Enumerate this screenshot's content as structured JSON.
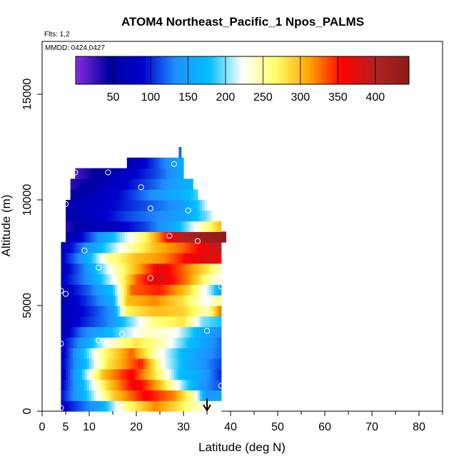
{
  "chart_data": {
    "type": "heatmap",
    "title": "ATOM4 Northeast_Pacific_1 Npos_PALMS",
    "subtitle_flights": "Flts: 1,2",
    "subtitle_dates": "MMDD: 0424,0427",
    "xlabel": "Latitude (deg N)",
    "ylabel": "Altitude (m)",
    "xlim": [
      0,
      85
    ],
    "ylim": [
      0,
      17500
    ],
    "x_major_ticks": [
      0,
      10,
      20,
      30,
      40,
      50,
      60,
      70,
      80
    ],
    "x_major_labels": [
      "0",
      "10",
      "20",
      "30",
      "40",
      "50",
      "60",
      "70",
      "80"
    ],
    "x_extra_tick_labels": [
      {
        "value": 5,
        "label": "5"
      }
    ],
    "x_minor_ticks": [
      5,
      15,
      25,
      35,
      45,
      55,
      65,
      75,
      85
    ],
    "y_ticks": [
      0,
      5000,
      10000,
      15000
    ],
    "y_tick_labels": [
      "0",
      "5000",
      "10000",
      "15000"
    ],
    "colorbar": {
      "min": 0,
      "max": 445,
      "ticks": [
        50,
        100,
        150,
        200,
        250,
        300,
        350,
        400
      ],
      "tick_labels": [
        "50",
        "100",
        "150",
        "200",
        "250",
        "300",
        "350",
        "400"
      ],
      "colors": [
        "#8a2be2",
        "#0000a0",
        "#0000cd",
        "#1e90ff",
        "#00bfff",
        "#ffffff",
        "#ffff66",
        "#ffa500",
        "#ff0000",
        "#b22222",
        "#8b1a1a"
      ]
    },
    "rows": [
      {
        "alt": [
          0,
          500
        ],
        "xmin": 4,
        "xmax": 38,
        "knots": [
          [
            4,
            80
          ],
          [
            12,
            150
          ],
          [
            18,
            260
          ],
          [
            24,
            320
          ],
          [
            28,
            290
          ],
          [
            33,
            240
          ],
          [
            38,
            220
          ]
        ]
      },
      {
        "alt": [
          500,
          1000
        ],
        "xmin": 4,
        "xmax": 38,
        "knots": [
          [
            4,
            90
          ],
          [
            10,
            190
          ],
          [
            15,
            290
          ],
          [
            22,
            360
          ],
          [
            28,
            320
          ],
          [
            32,
            250
          ],
          [
            35,
            140
          ],
          [
            38,
            150
          ]
        ]
      },
      {
        "alt": [
          1000,
          1500
        ],
        "xmin": 4,
        "xmax": 38,
        "knots": [
          [
            4,
            80
          ],
          [
            9,
            180
          ],
          [
            14,
            290
          ],
          [
            20,
            370
          ],
          [
            25,
            300
          ],
          [
            30,
            200
          ],
          [
            34,
            140
          ],
          [
            38,
            110
          ]
        ]
      },
      {
        "alt": [
          1500,
          2000
        ],
        "xmin": 4,
        "xmax": 38,
        "knots": [
          [
            4,
            70
          ],
          [
            8,
            170
          ],
          [
            13,
            300
          ],
          [
            19,
            360
          ],
          [
            24,
            280
          ],
          [
            29,
            180
          ],
          [
            34,
            150
          ],
          [
            38,
            100
          ]
        ]
      },
      {
        "alt": [
          2000,
          2500
        ],
        "xmin": 4,
        "xmax": 38,
        "knots": [
          [
            4,
            80
          ],
          [
            9,
            170
          ],
          [
            14,
            280
          ],
          [
            21,
            350
          ],
          [
            26,
            220
          ],
          [
            31,
            160
          ],
          [
            38,
            110
          ]
        ]
      },
      {
        "alt": [
          2500,
          3000
        ],
        "xmin": 4,
        "xmax": 38,
        "knots": [
          [
            4,
            70
          ],
          [
            8,
            160
          ],
          [
            13,
            260
          ],
          [
            19,
            330
          ],
          [
            25,
            230
          ],
          [
            30,
            170
          ],
          [
            38,
            120
          ]
        ]
      },
      {
        "alt": [
          3000,
          3500
        ],
        "xmin": 4,
        "xmax": 38,
        "knots": [
          [
            4,
            80
          ],
          [
            9,
            150
          ],
          [
            14,
            230
          ],
          [
            20,
            280
          ],
          [
            26,
            240
          ],
          [
            31,
            180
          ],
          [
            38,
            120
          ]
        ]
      },
      {
        "alt": [
          3500,
          4000
        ],
        "xmin": 4,
        "xmax": 38,
        "knots": [
          [
            4,
            60
          ],
          [
            8,
            120
          ],
          [
            13,
            160
          ],
          [
            17,
            200
          ],
          [
            22,
            240
          ],
          [
            28,
            230
          ],
          [
            33,
            170
          ],
          [
            38,
            130
          ]
        ]
      },
      {
        "alt": [
          4000,
          4500
        ],
        "xmin": 4,
        "xmax": 38,
        "knots": [
          [
            4,
            60
          ],
          [
            9,
            100
          ],
          [
            14,
            130
          ],
          [
            18,
            190
          ],
          [
            24,
            260
          ],
          [
            30,
            280
          ],
          [
            34,
            200
          ],
          [
            38,
            180
          ]
        ]
      },
      {
        "alt": [
          4500,
          5000
        ],
        "xmin": 4,
        "xmax": 38,
        "knots": [
          [
            4,
            60
          ],
          [
            10,
            100
          ],
          [
            15,
            140
          ],
          [
            18,
            270
          ],
          [
            24,
            300
          ],
          [
            30,
            290
          ],
          [
            35,
            240
          ],
          [
            38,
            330
          ]
        ]
      },
      {
        "alt": [
          5000,
          5500
        ],
        "xmin": 4,
        "xmax": 38,
        "knots": [
          [
            4,
            60
          ],
          [
            10,
            110
          ],
          [
            15,
            160
          ],
          [
            18,
            300
          ],
          [
            24,
            320
          ],
          [
            30,
            280
          ],
          [
            35,
            220
          ],
          [
            38,
            260
          ]
        ]
      },
      {
        "alt": [
          5500,
          6000
        ],
        "xmin": 4,
        "xmax": 38,
        "knots": [
          [
            4,
            70
          ],
          [
            10,
            120
          ],
          [
            15,
            180
          ],
          [
            19,
            330
          ],
          [
            25,
            350
          ],
          [
            31,
            290
          ],
          [
            36,
            200
          ],
          [
            38,
            150
          ]
        ]
      },
      {
        "alt": [
          6000,
          6500
        ],
        "xmin": 4,
        "xmax": 38,
        "knots": [
          [
            4,
            80
          ],
          [
            10,
            140
          ],
          [
            15,
            220
          ],
          [
            20,
            330
          ],
          [
            25,
            380
          ],
          [
            31,
            320
          ],
          [
            36,
            240
          ],
          [
            38,
            230
          ]
        ]
      },
      {
        "alt": [
          6500,
          7000
        ],
        "xmin": 4,
        "xmax": 38,
        "knots": [
          [
            4,
            70
          ],
          [
            9,
            130
          ],
          [
            14,
            220
          ],
          [
            19,
            290
          ],
          [
            25,
            370
          ],
          [
            30,
            330
          ],
          [
            35,
            280
          ],
          [
            38,
            240
          ]
        ]
      },
      {
        "alt": [
          7000,
          7500
        ],
        "xmin": 4,
        "xmax": 38,
        "knots": [
          [
            4,
            80
          ],
          [
            9,
            150
          ],
          [
            14,
            250
          ],
          [
            20,
            300
          ],
          [
            26,
            320
          ],
          [
            31,
            360
          ],
          [
            36,
            380
          ],
          [
            38,
            350
          ]
        ]
      },
      {
        "alt": [
          7500,
          8000
        ],
        "xmin": 4,
        "xmax": 38,
        "knots": [
          [
            4,
            60
          ],
          [
            8,
            120
          ],
          [
            13,
            180
          ],
          [
            18,
            240
          ],
          [
            24,
            300
          ],
          [
            30,
            330
          ],
          [
            35,
            370
          ],
          [
            38,
            400
          ]
        ]
      },
      {
        "alt": [
          8000,
          8500
        ],
        "xmin": 5,
        "xmax": 39,
        "knots": [
          [
            5,
            50
          ],
          [
            10,
            110
          ],
          [
            16,
            190
          ],
          [
            22,
            270
          ],
          [
            28,
            380
          ],
          [
            33,
            420
          ],
          [
            39,
            440
          ]
        ]
      },
      {
        "alt": [
          8500,
          9000
        ],
        "xmin": 5,
        "xmax": 38,
        "knots": [
          [
            5,
            30
          ],
          [
            10,
            60
          ],
          [
            16,
            80
          ],
          [
            22,
            110
          ],
          [
            28,
            160
          ],
          [
            33,
            230
          ],
          [
            38,
            300
          ]
        ]
      },
      {
        "alt": [
          9000,
          9500
        ],
        "xmin": 5,
        "xmax": 37,
        "knots": [
          [
            5,
            50
          ],
          [
            12,
            80
          ],
          [
            18,
            110
          ],
          [
            24,
            130
          ],
          [
            30,
            150
          ],
          [
            35,
            200
          ],
          [
            37,
            230
          ]
        ]
      },
      {
        "alt": [
          9500,
          10000
        ],
        "xmin": 5,
        "xmax": 35,
        "knots": [
          [
            5,
            60
          ],
          [
            12,
            80
          ],
          [
            18,
            100
          ],
          [
            24,
            120
          ],
          [
            29,
            140
          ],
          [
            33,
            180
          ],
          [
            35,
            220
          ]
        ]
      },
      {
        "alt": [
          10000,
          10500
        ],
        "xmin": 6,
        "xmax": 33,
        "knots": [
          [
            6,
            40
          ],
          [
            12,
            70
          ],
          [
            18,
            100
          ],
          [
            24,
            140
          ],
          [
            29,
            160
          ],
          [
            33,
            190
          ]
        ]
      },
      {
        "alt": [
          10500,
          11000
        ],
        "xmin": 6,
        "xmax": 32,
        "knots": [
          [
            6,
            30
          ],
          [
            12,
            60
          ],
          [
            18,
            90
          ],
          [
            24,
            120
          ],
          [
            28,
            150
          ],
          [
            32,
            170
          ]
        ]
      },
      {
        "alt": [
          11000,
          11500
        ],
        "xmin": 7,
        "xmax": 30,
        "knots": [
          [
            7,
            20
          ],
          [
            12,
            50
          ],
          [
            18,
            80
          ],
          [
            24,
            110
          ],
          [
            28,
            140
          ],
          [
            30,
            160
          ]
        ]
      },
      {
        "alt": [
          11500,
          12000
        ],
        "xmin": 18,
        "xmax": 30,
        "knots": [
          [
            18,
            50
          ],
          [
            22,
            90
          ],
          [
            26,
            130
          ],
          [
            30,
            160
          ]
        ]
      },
      {
        "alt": [
          12000,
          12500
        ],
        "xmin": 29,
        "xmax": 29.5,
        "knots": [
          [
            29,
            100
          ],
          [
            29.5,
            140
          ]
        ]
      }
    ],
    "marker_points": [
      [
        7,
        11300
      ],
      [
        14,
        11300
      ],
      [
        21,
        10600
      ],
      [
        28,
        11700
      ],
      [
        5,
        9800
      ],
      [
        23,
        9600
      ],
      [
        31,
        9500
      ],
      [
        27,
        8300
      ],
      [
        33,
        8050
      ],
      [
        9,
        7600
      ],
      [
        12,
        6800
      ],
      [
        23,
        6300
      ],
      [
        4,
        5700
      ],
      [
        5,
        5550
      ],
      [
        38,
        5900
      ],
      [
        17,
        3650
      ],
      [
        35,
        3800
      ],
      [
        4,
        3200
      ],
      [
        12,
        3350
      ],
      [
        24,
        2650
      ],
      [
        38,
        1200
      ],
      [
        4,
        150
      ],
      [
        17,
        150
      ],
      [
        38,
        200
      ]
    ],
    "arrow_x": 35
  }
}
